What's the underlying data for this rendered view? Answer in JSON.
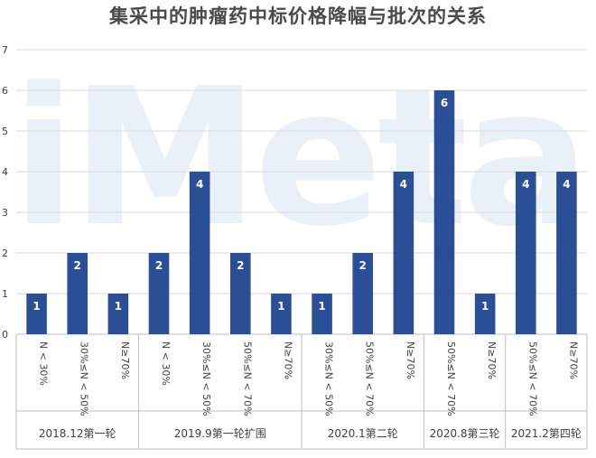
{
  "chart_data": {
    "type": "bar",
    "title": "集采中的肿瘤药中标价格降幅与批次的关系",
    "watermark": "iMeta",
    "xlabel": "",
    "ylabel": "",
    "ylim": [
      0,
      7
    ],
    "yticks": [
      "0",
      "1",
      "2",
      "3",
      "4",
      "5",
      "6",
      "7"
    ],
    "grid": true,
    "legend": "none",
    "colors": {
      "bar": "#2b4f96",
      "grid": "#d9d9d9",
      "axis": "#bfbfbf",
      "text": "#404040"
    },
    "groups": [
      {
        "label": "2018.12第一轮",
        "categories": [
          "N < 30%",
          "30%≤N < 50%",
          "N≥70%"
        ],
        "values": [
          1,
          2,
          1
        ]
      },
      {
        "label": "2019.9第一轮扩围",
        "categories": [
          "N < 30%",
          "30%≤N < 50%",
          "50%≤N < 70%",
          "N≥70%"
        ],
        "values": [
          2,
          4,
          2,
          1
        ]
      },
      {
        "label": "2020.1第二轮",
        "categories": [
          "30%≤N < 50%",
          "50%≤N < 70%",
          "N≥70%"
        ],
        "values": [
          1,
          2,
          4
        ]
      },
      {
        "label": "2020.8第三轮",
        "categories": [
          "50%≤N < 70%",
          "N≥70%"
        ],
        "values": [
          6,
          1
        ]
      },
      {
        "label": "2021.2第四轮",
        "categories": [
          "50%≤N < 70%",
          "N≥70%"
        ],
        "values": [
          4,
          4
        ]
      }
    ]
  }
}
